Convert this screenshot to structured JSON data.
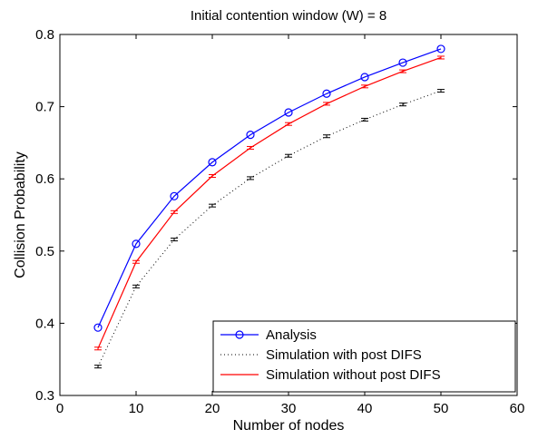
{
  "chart_data": {
    "type": "line",
    "title": "Initial contention window (W) = 8",
    "xlabel": "Number of nodes",
    "ylabel": "Collision Probability",
    "xlim": [
      0,
      60
    ],
    "ylim": [
      0.3,
      0.8
    ],
    "xticks": [
      0,
      10,
      20,
      30,
      40,
      50,
      60
    ],
    "yticks": [
      0.3,
      0.4,
      0.5,
      0.6,
      0.7,
      0.8
    ],
    "xtick_labels": [
      "0",
      "10",
      "20",
      "30",
      "40",
      "50",
      "60"
    ],
    "ytick_labels": [
      "0.3",
      "0.4",
      "0.5",
      "0.6",
      "0.7",
      "0.8"
    ],
    "grid": false,
    "legend_position": "bottom-right",
    "x": [
      5,
      10,
      15,
      20,
      25,
      30,
      35,
      40,
      45,
      50
    ],
    "series": [
      {
        "name": "Analysis",
        "color": "#0000ff",
        "line_style": "solid",
        "marker": "circle",
        "values": [
          0.394,
          0.51,
          0.576,
          0.623,
          0.661,
          0.692,
          0.718,
          0.741,
          0.761,
          0.78
        ]
      },
      {
        "name": "Simulation with post DIFS",
        "color": "#000000",
        "line_style": "dotted",
        "marker": "errorbar",
        "values": [
          0.34,
          0.451,
          0.516,
          0.563,
          0.601,
          0.632,
          0.659,
          0.682,
          0.703,
          0.722
        ]
      },
      {
        "name": "Simulation without post DIFS",
        "color": "#ff0000",
        "line_style": "solid",
        "marker": "errorbar",
        "values": [
          0.365,
          0.485,
          0.554,
          0.604,
          0.643,
          0.676,
          0.704,
          0.728,
          0.749,
          0.768
        ]
      }
    ]
  }
}
